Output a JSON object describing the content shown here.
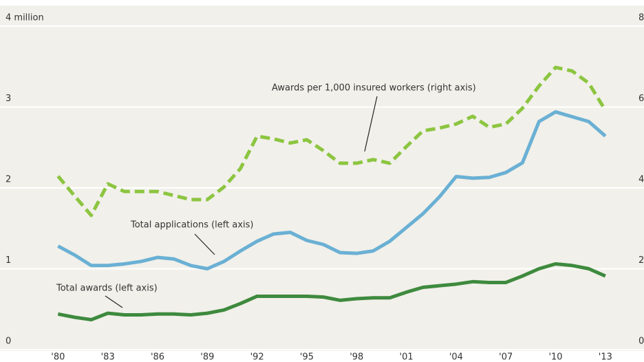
{
  "chart_data": {
    "type": "line",
    "x": [
      1980,
      1981,
      1982,
      1983,
      1984,
      1985,
      1986,
      1987,
      1988,
      1989,
      1990,
      1991,
      1992,
      1993,
      1994,
      1995,
      1996,
      1997,
      1998,
      1999,
      2000,
      2001,
      2002,
      2003,
      2004,
      2005,
      2006,
      2007,
      2008,
      2009,
      2010,
      2011,
      2012,
      2013
    ],
    "xlim": [
      1976.5,
      2014.5
    ],
    "xticks": [
      {
        "value": 1980,
        "label": "'80"
      },
      {
        "value": 1983,
        "label": "'83"
      },
      {
        "value": 1986,
        "label": "'86"
      },
      {
        "value": 1989,
        "label": "'89"
      },
      {
        "value": 1992,
        "label": "'92"
      },
      {
        "value": 1995,
        "label": "'95"
      },
      {
        "value": 1998,
        "label": "'98"
      },
      {
        "value": 2001,
        "label": "'01"
      },
      {
        "value": 2004,
        "label": "'04"
      },
      {
        "value": 2007,
        "label": "'07"
      },
      {
        "value": 2010,
        "label": "'10"
      },
      {
        "value": 2013,
        "label": "'13"
      }
    ],
    "ylim": [
      0,
      4
    ],
    "yticks": [
      0,
      1,
      2,
      3,
      {
        "value": 4,
        "label": "4 million"
      }
    ],
    "y2lim": [
      0,
      8
    ],
    "y2ticks": [
      0,
      2,
      4,
      6,
      8
    ],
    "grid": true,
    "series": [
      {
        "name": "Awards per 1,000 insured workers (right axis)",
        "color": "#8cc540",
        "dashed": true,
        "axis": "y2",
        "values": [
          4.29,
          3.8,
          3.32,
          4.1,
          3.91,
          3.91,
          3.91,
          3.81,
          3.71,
          3.71,
          4.02,
          4.48,
          5.28,
          5.21,
          5.11,
          5.19,
          4.92,
          4.61,
          4.61,
          4.7,
          4.61,
          5.02,
          5.41,
          5.48,
          5.58,
          5.77,
          5.5,
          5.58,
          5.97,
          6.52,
          6.98,
          6.89,
          6.59,
          5.92
        ]
      },
      {
        "name": "Total applications (left axis)",
        "color": "#6ab0d4",
        "values": [
          1.28,
          1.17,
          1.04,
          1.04,
          1.06,
          1.09,
          1.14,
          1.12,
          1.04,
          1.0,
          1.09,
          1.22,
          1.34,
          1.43,
          1.45,
          1.35,
          1.3,
          1.2,
          1.19,
          1.22,
          1.34,
          1.51,
          1.68,
          1.89,
          2.14,
          2.12,
          2.13,
          2.19,
          2.31,
          2.82,
          2.94,
          2.88,
          2.82,
          2.64
        ]
      },
      {
        "name": "Total awards (left axis)",
        "color": "#3e8a3e",
        "values": [
          0.44,
          0.4,
          0.37,
          0.45,
          0.43,
          0.43,
          0.44,
          0.44,
          0.43,
          0.45,
          0.49,
          0.57,
          0.66,
          0.66,
          0.66,
          0.66,
          0.65,
          0.61,
          0.63,
          0.64,
          0.64,
          0.71,
          0.77,
          0.79,
          0.81,
          0.84,
          0.83,
          0.83,
          0.91,
          1.0,
          1.06,
          1.04,
          1.0,
          0.91
        ]
      }
    ]
  }
}
